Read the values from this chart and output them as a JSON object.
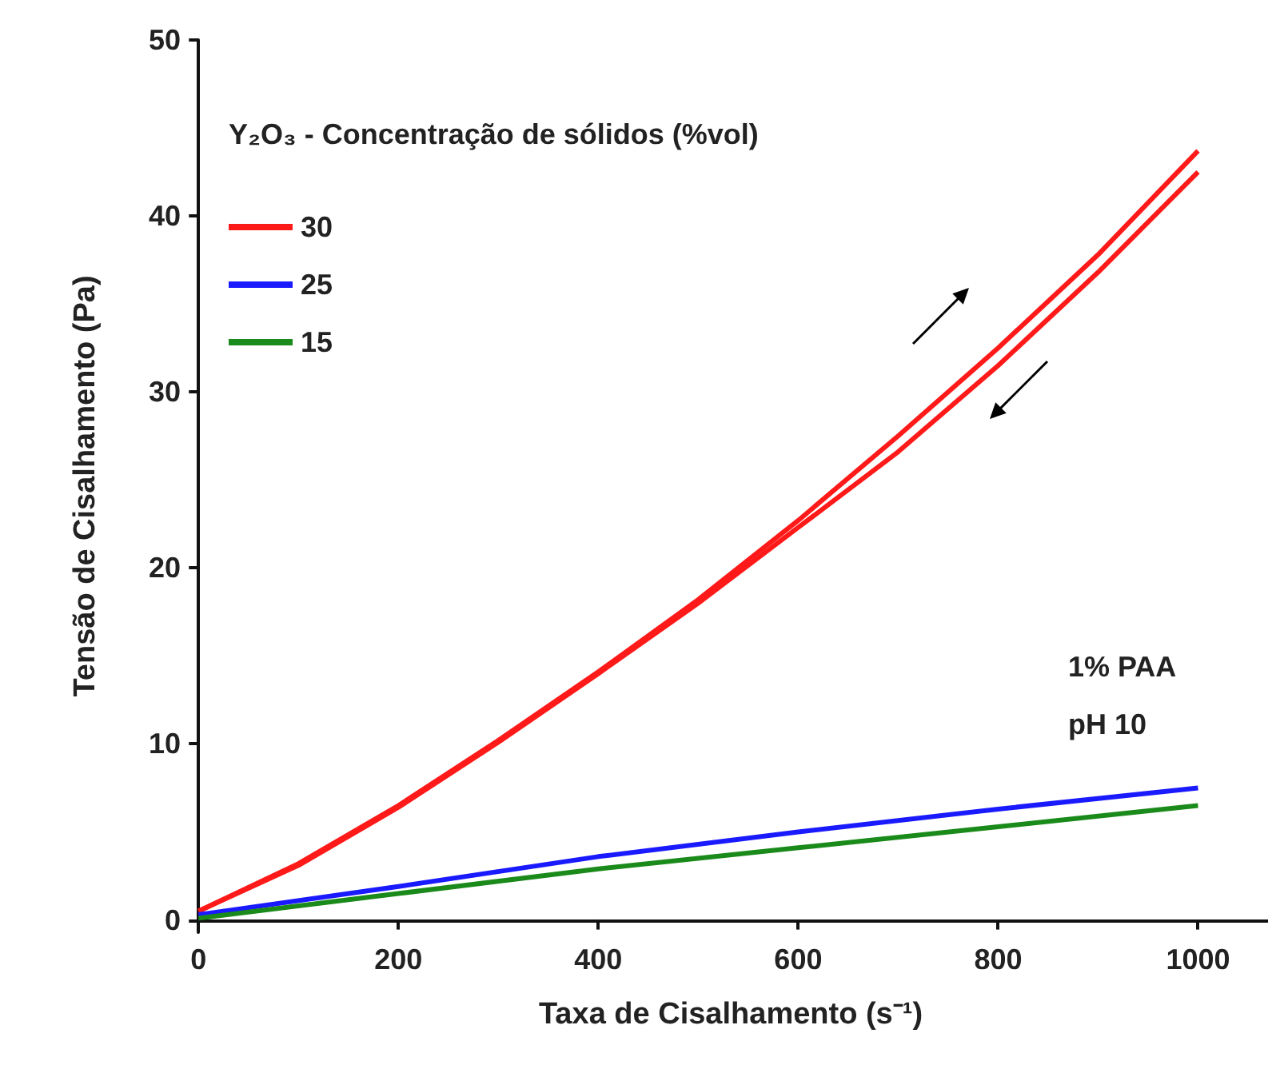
{
  "chart_data": {
    "type": "line",
    "xlabel": "Taxa de Cisalhamento (s⁻¹)",
    "ylabel": "Tensão de Cisalhamento (Pa)",
    "legend_title": "Y₂O₃ - Concentração de sólidos (%vol)",
    "xlim": [
      -5,
      1070
    ],
    "ylim": [
      -0.7,
      50
    ],
    "xticks": [
      0,
      200,
      400,
      600,
      800,
      1000
    ],
    "yticks": [
      0,
      10,
      20,
      30,
      40,
      50
    ],
    "grid": false,
    "legend": "top left",
    "marker": "none",
    "line_style": "solid",
    "series": [
      {
        "name": "30",
        "color": "#ff1a1a",
        "x": [
          0,
          100,
          200,
          300,
          400,
          500,
          600,
          700,
          800,
          900,
          1000
        ],
        "values": [
          0.5,
          3.2,
          6.5,
          10.2,
          14.1,
          18.2,
          22.7,
          27.5,
          32.5,
          37.8,
          43.7
        ]
      },
      {
        "color": "#ff1a1a",
        "x": [
          1000,
          900,
          800,
          700,
          600,
          500,
          400,
          300,
          200,
          100,
          0
        ],
        "values": [
          42.5,
          36.8,
          31.5,
          26.6,
          22.3,
          18.0,
          14.0,
          10.1,
          6.4,
          3.1,
          0.5
        ]
      },
      {
        "name": "25",
        "color": "#1a1aff",
        "x": [
          0,
          200,
          400,
          600,
          800,
          1000
        ],
        "values": [
          0.3,
          1.9,
          3.6,
          5.0,
          6.3,
          7.5
        ]
      },
      {
        "name": "15",
        "color": "#1a8a1a",
        "x": [
          0,
          200,
          400,
          600,
          800,
          1000
        ],
        "values": [
          0.1,
          1.5,
          2.9,
          4.1,
          5.3,
          6.5
        ]
      }
    ],
    "annotations": [
      "1% PAA",
      "pH 10"
    ]
  }
}
